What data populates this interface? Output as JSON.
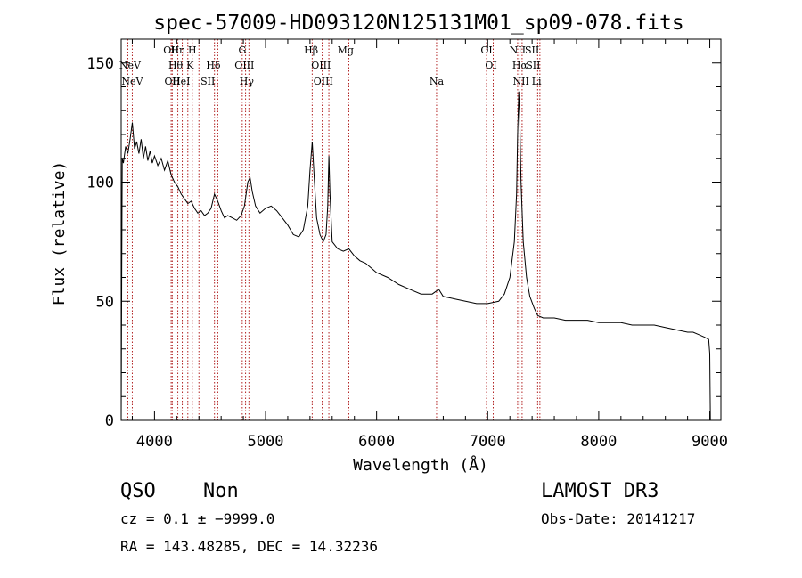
{
  "chart_data": {
    "type": "line",
    "title": "spec-57009-HD093120N125131M01_sp09-078.fits",
    "xlabel": "Wavelength (Å)",
    "ylabel": "Flux (relative)",
    "xlim": [
      3700,
      9100
    ],
    "ylim": [
      0,
      160
    ],
    "xticks": [
      "4000",
      "5000",
      "6000",
      "7000",
      "8000",
      "9000"
    ],
    "yticks": [
      "0",
      "50",
      "100",
      "150"
    ],
    "color": "#000000",
    "line_color": "#b22222",
    "series": [
      {
        "points": [
          [
            3700,
            0
          ],
          [
            3705,
            60
          ],
          [
            3710,
            110
          ],
          [
            3720,
            108
          ],
          [
            3740,
            115
          ],
          [
            3760,
            112
          ],
          [
            3780,
            118
          ],
          [
            3800,
            125
          ],
          [
            3820,
            114
          ],
          [
            3840,
            117
          ],
          [
            3860,
            112
          ],
          [
            3880,
            118
          ],
          [
            3900,
            110
          ],
          [
            3920,
            115
          ],
          [
            3940,
            109
          ],
          [
            3960,
            113
          ],
          [
            3980,
            108
          ],
          [
            4000,
            111
          ],
          [
            4030,
            107
          ],
          [
            4060,
            110
          ],
          [
            4090,
            105
          ],
          [
            4120,
            109
          ],
          [
            4150,
            103
          ],
          [
            4180,
            100
          ],
          [
            4210,
            98
          ],
          [
            4240,
            95
          ],
          [
            4270,
            93
          ],
          [
            4300,
            91
          ],
          [
            4330,
            92
          ],
          [
            4360,
            89
          ],
          [
            4390,
            87
          ],
          [
            4420,
            88
          ],
          [
            4450,
            86
          ],
          [
            4480,
            87
          ],
          [
            4510,
            89
          ],
          [
            4540,
            95
          ],
          [
            4570,
            92
          ],
          [
            4600,
            88
          ],
          [
            4630,
            85
          ],
          [
            4660,
            86
          ],
          [
            4700,
            85
          ],
          [
            4740,
            84
          ],
          [
            4780,
            86
          ],
          [
            4810,
            90
          ],
          [
            4840,
            100
          ],
          [
            4860,
            102
          ],
          [
            4880,
            96
          ],
          [
            4910,
            90
          ],
          [
            4950,
            87
          ],
          [
            5000,
            89
          ],
          [
            5050,
            90
          ],
          [
            5100,
            88
          ],
          [
            5150,
            85
          ],
          [
            5200,
            82
          ],
          [
            5250,
            78
          ],
          [
            5300,
            77
          ],
          [
            5340,
            80
          ],
          [
            5380,
            90
          ],
          [
            5400,
            105
          ],
          [
            5420,
            117
          ],
          [
            5440,
            100
          ],
          [
            5460,
            85
          ],
          [
            5490,
            78
          ],
          [
            5520,
            75
          ],
          [
            5545,
            78
          ],
          [
            5560,
            90
          ],
          [
            5570,
            111
          ],
          [
            5580,
            95
          ],
          [
            5600,
            75
          ],
          [
            5650,
            72
          ],
          [
            5700,
            71
          ],
          [
            5750,
            72
          ],
          [
            5800,
            69
          ],
          [
            5850,
            67
          ],
          [
            5900,
            66
          ],
          [
            5950,
            64
          ],
          [
            6000,
            62
          ],
          [
            6100,
            60
          ],
          [
            6200,
            57
          ],
          [
            6300,
            55
          ],
          [
            6400,
            53
          ],
          [
            6500,
            53
          ],
          [
            6560,
            55
          ],
          [
            6600,
            52
          ],
          [
            6700,
            51
          ],
          [
            6800,
            50
          ],
          [
            6900,
            49
          ],
          [
            7000,
            49
          ],
          [
            7100,
            50
          ],
          [
            7150,
            53
          ],
          [
            7200,
            60
          ],
          [
            7240,
            75
          ],
          [
            7260,
            95
          ],
          [
            7270,
            120
          ],
          [
            7280,
            138
          ],
          [
            7290,
            125
          ],
          [
            7300,
            100
          ],
          [
            7320,
            75
          ],
          [
            7350,
            60
          ],
          [
            7380,
            52
          ],
          [
            7420,
            47
          ],
          [
            7450,
            44
          ],
          [
            7500,
            43
          ],
          [
            7600,
            43
          ],
          [
            7700,
            42
          ],
          [
            7800,
            42
          ],
          [
            7900,
            42
          ],
          [
            8000,
            41
          ],
          [
            8100,
            41
          ],
          [
            8200,
            41
          ],
          [
            8300,
            40
          ],
          [
            8400,
            40
          ],
          [
            8500,
            40
          ],
          [
            8600,
            39
          ],
          [
            8700,
            38
          ],
          [
            8800,
            37
          ],
          [
            8850,
            37
          ],
          [
            8900,
            36
          ],
          [
            8950,
            35
          ],
          [
            8990,
            34
          ],
          [
            9000,
            28
          ],
          [
            9005,
            0
          ]
        ]
      }
    ],
    "line_markers": [
      {
        "label": "NeV",
        "wavelength": 3780,
        "row": 2
      },
      {
        "label": "NeV",
        "wavelength": 3800,
        "row": 3
      },
      {
        "label": "OII",
        "wavelength": 4150,
        "row": 1
      },
      {
        "label": "OII",
        "wavelength": 4160,
        "row": 3
      },
      {
        "label": "Hη",
        "wavelength": 4210,
        "row": 1
      },
      {
        "label": "Hθ",
        "wavelength": 4190,
        "row": 2
      },
      {
        "label": "HeI",
        "wavelength": 4240,
        "row": 3
      },
      {
        "label": "H",
        "wavelength": 4340,
        "row": 1
      },
      {
        "label": "K",
        "wavelength": 4320,
        "row": 2
      },
      {
        "label": "SII",
        "wavelength": 4480,
        "row": 3
      },
      {
        "label": "Hδ",
        "wavelength": 4530,
        "row": 2
      },
      {
        "label": "G",
        "wavelength": 4790,
        "row": 1
      },
      {
        "label": "OIII",
        "wavelength": 4810,
        "row": 2
      },
      {
        "label": "Hγ",
        "wavelength": 4830,
        "row": 3
      },
      {
        "label": "Hβ",
        "wavelength": 5410,
        "row": 1
      },
      {
        "label": "OIII",
        "wavelength": 5500,
        "row": 2
      },
      {
        "label": "OIII",
        "wavelength": 5520,
        "row": 3
      },
      {
        "label": "Mg",
        "wavelength": 5720,
        "row": 1
      },
      {
        "label": "Na",
        "wavelength": 6540,
        "row": 3
      },
      {
        "label": "OI",
        "wavelength": 6990,
        "row": 1
      },
      {
        "label": "OI",
        "wavelength": 7030,
        "row": 2
      },
      {
        "label": "NII",
        "wavelength": 7270,
        "row": 1
      },
      {
        "label": "SII",
        "wavelength": 7400,
        "row": 1
      },
      {
        "label": "Hα",
        "wavelength": 7290,
        "row": 2
      },
      {
        "label": "SII",
        "wavelength": 7410,
        "row": 2
      },
      {
        "label": "NII",
        "wavelength": 7300,
        "row": 3
      },
      {
        "label": "Li",
        "wavelength": 7440,
        "row": 3
      }
    ],
    "marker_wavelengths": [
      3760,
      3800,
      4150,
      4160,
      4210,
      4250,
      4300,
      4340,
      4400,
      4540,
      4570,
      4790,
      4820,
      4850,
      5420,
      5510,
      5570,
      5750,
      6540,
      6990,
      7050,
      7270,
      7290,
      7310,
      7450,
      7470
    ]
  },
  "footer": {
    "class_label": "QSO",
    "subclass_label": "Non",
    "survey": "LAMOST DR3",
    "cz": "cz = 0.1 ± −9999.0",
    "obs_date": "Obs-Date: 20141217",
    "radec": "RA = 143.48285, DEC =  14.32236"
  }
}
